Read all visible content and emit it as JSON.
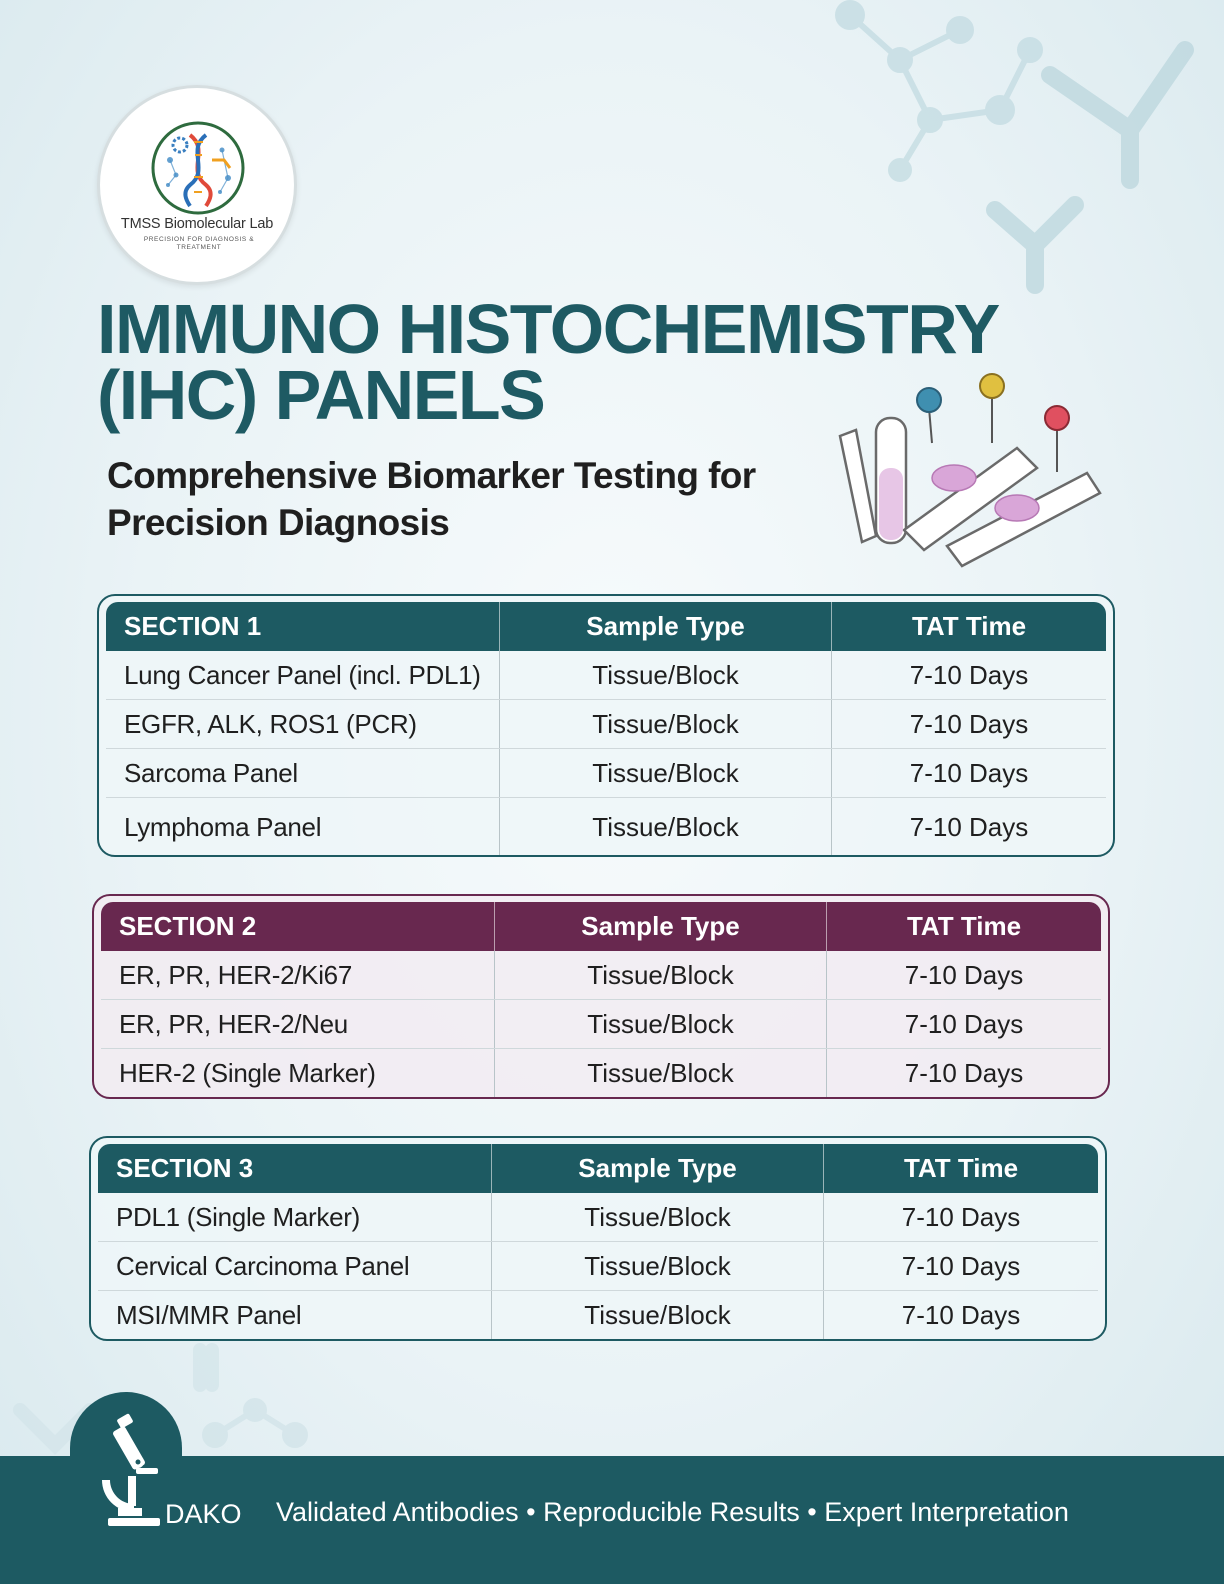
{
  "logo": {
    "name": "TMSS Biomolecular Lab",
    "tagline": "PRECISION FOR DIAGNOSIS & TREATMENT"
  },
  "title": {
    "line1": "IMMUNO HISTOCHEMISTRY",
    "line2": "(IHC) PANELS"
  },
  "subtitle": {
    "line1": "Comprehensive Biomarker Testing for",
    "line2": "Precision Diagnosis"
  },
  "colors": {
    "teal": "#1d5a62",
    "plum": "#68284f",
    "title": "#1e5a63"
  },
  "sections": [
    {
      "header": {
        "name": "SECTION 1",
        "sample": "Sample Type",
        "tat": "TAT Time"
      },
      "rows": [
        {
          "test": "Lung Cancer Panel (incl. PDL1)",
          "sample": "Tissue/Block",
          "tat": "7-10 Days"
        },
        {
          "test": "EGFR, ALK, ROS1 (PCR)",
          "sample": "Tissue/Block",
          "tat": "7-10 Days"
        },
        {
          "test": "Sarcoma Panel",
          "sample": "Tissue/Block",
          "tat": "7-10 Days"
        },
        {
          "test": "Lymphoma Panel",
          "sample": "Tissue/Block",
          "tat": "7-10 Days"
        }
      ]
    },
    {
      "header": {
        "name": "SECTION 2",
        "sample": "Sample Type",
        "tat": "TAT Time"
      },
      "rows": [
        {
          "test": "ER, PR, HER-2/Ki67",
          "sample": "Tissue/Block",
          "tat": "7-10 Days"
        },
        {
          "test": "ER, PR, HER-2/Neu",
          "sample": "Tissue/Block",
          "tat": "7-10 Days"
        },
        {
          "test": "HER-2 (Single Marker)",
          "sample": "Tissue/Block",
          "tat": "7-10 Days"
        }
      ]
    },
    {
      "header": {
        "name": "SECTION 3",
        "sample": "Sample Type",
        "tat": "TAT Time"
      },
      "rows": [
        {
          "test": "PDL1 (Single Marker)",
          "sample": "Tissue/Block",
          "tat": "7-10 Days"
        },
        {
          "test": "Cervical Carcinoma Panel",
          "sample": "Tissue/Block",
          "tat": "7-10 Days"
        },
        {
          "test": "MSI/MMR Panel",
          "sample": "Tissue/Block",
          "tat": "7-10 Days"
        }
      ]
    }
  ],
  "footer": {
    "brand": "DAKO",
    "tagline": "Validated Antibodies • Reproducible Results • Expert Interpretation"
  },
  "icons": [
    "dna-logo-icon",
    "test-tube-slides-icon",
    "microscope-icon",
    "molecule-icon",
    "antibody-icon"
  ]
}
